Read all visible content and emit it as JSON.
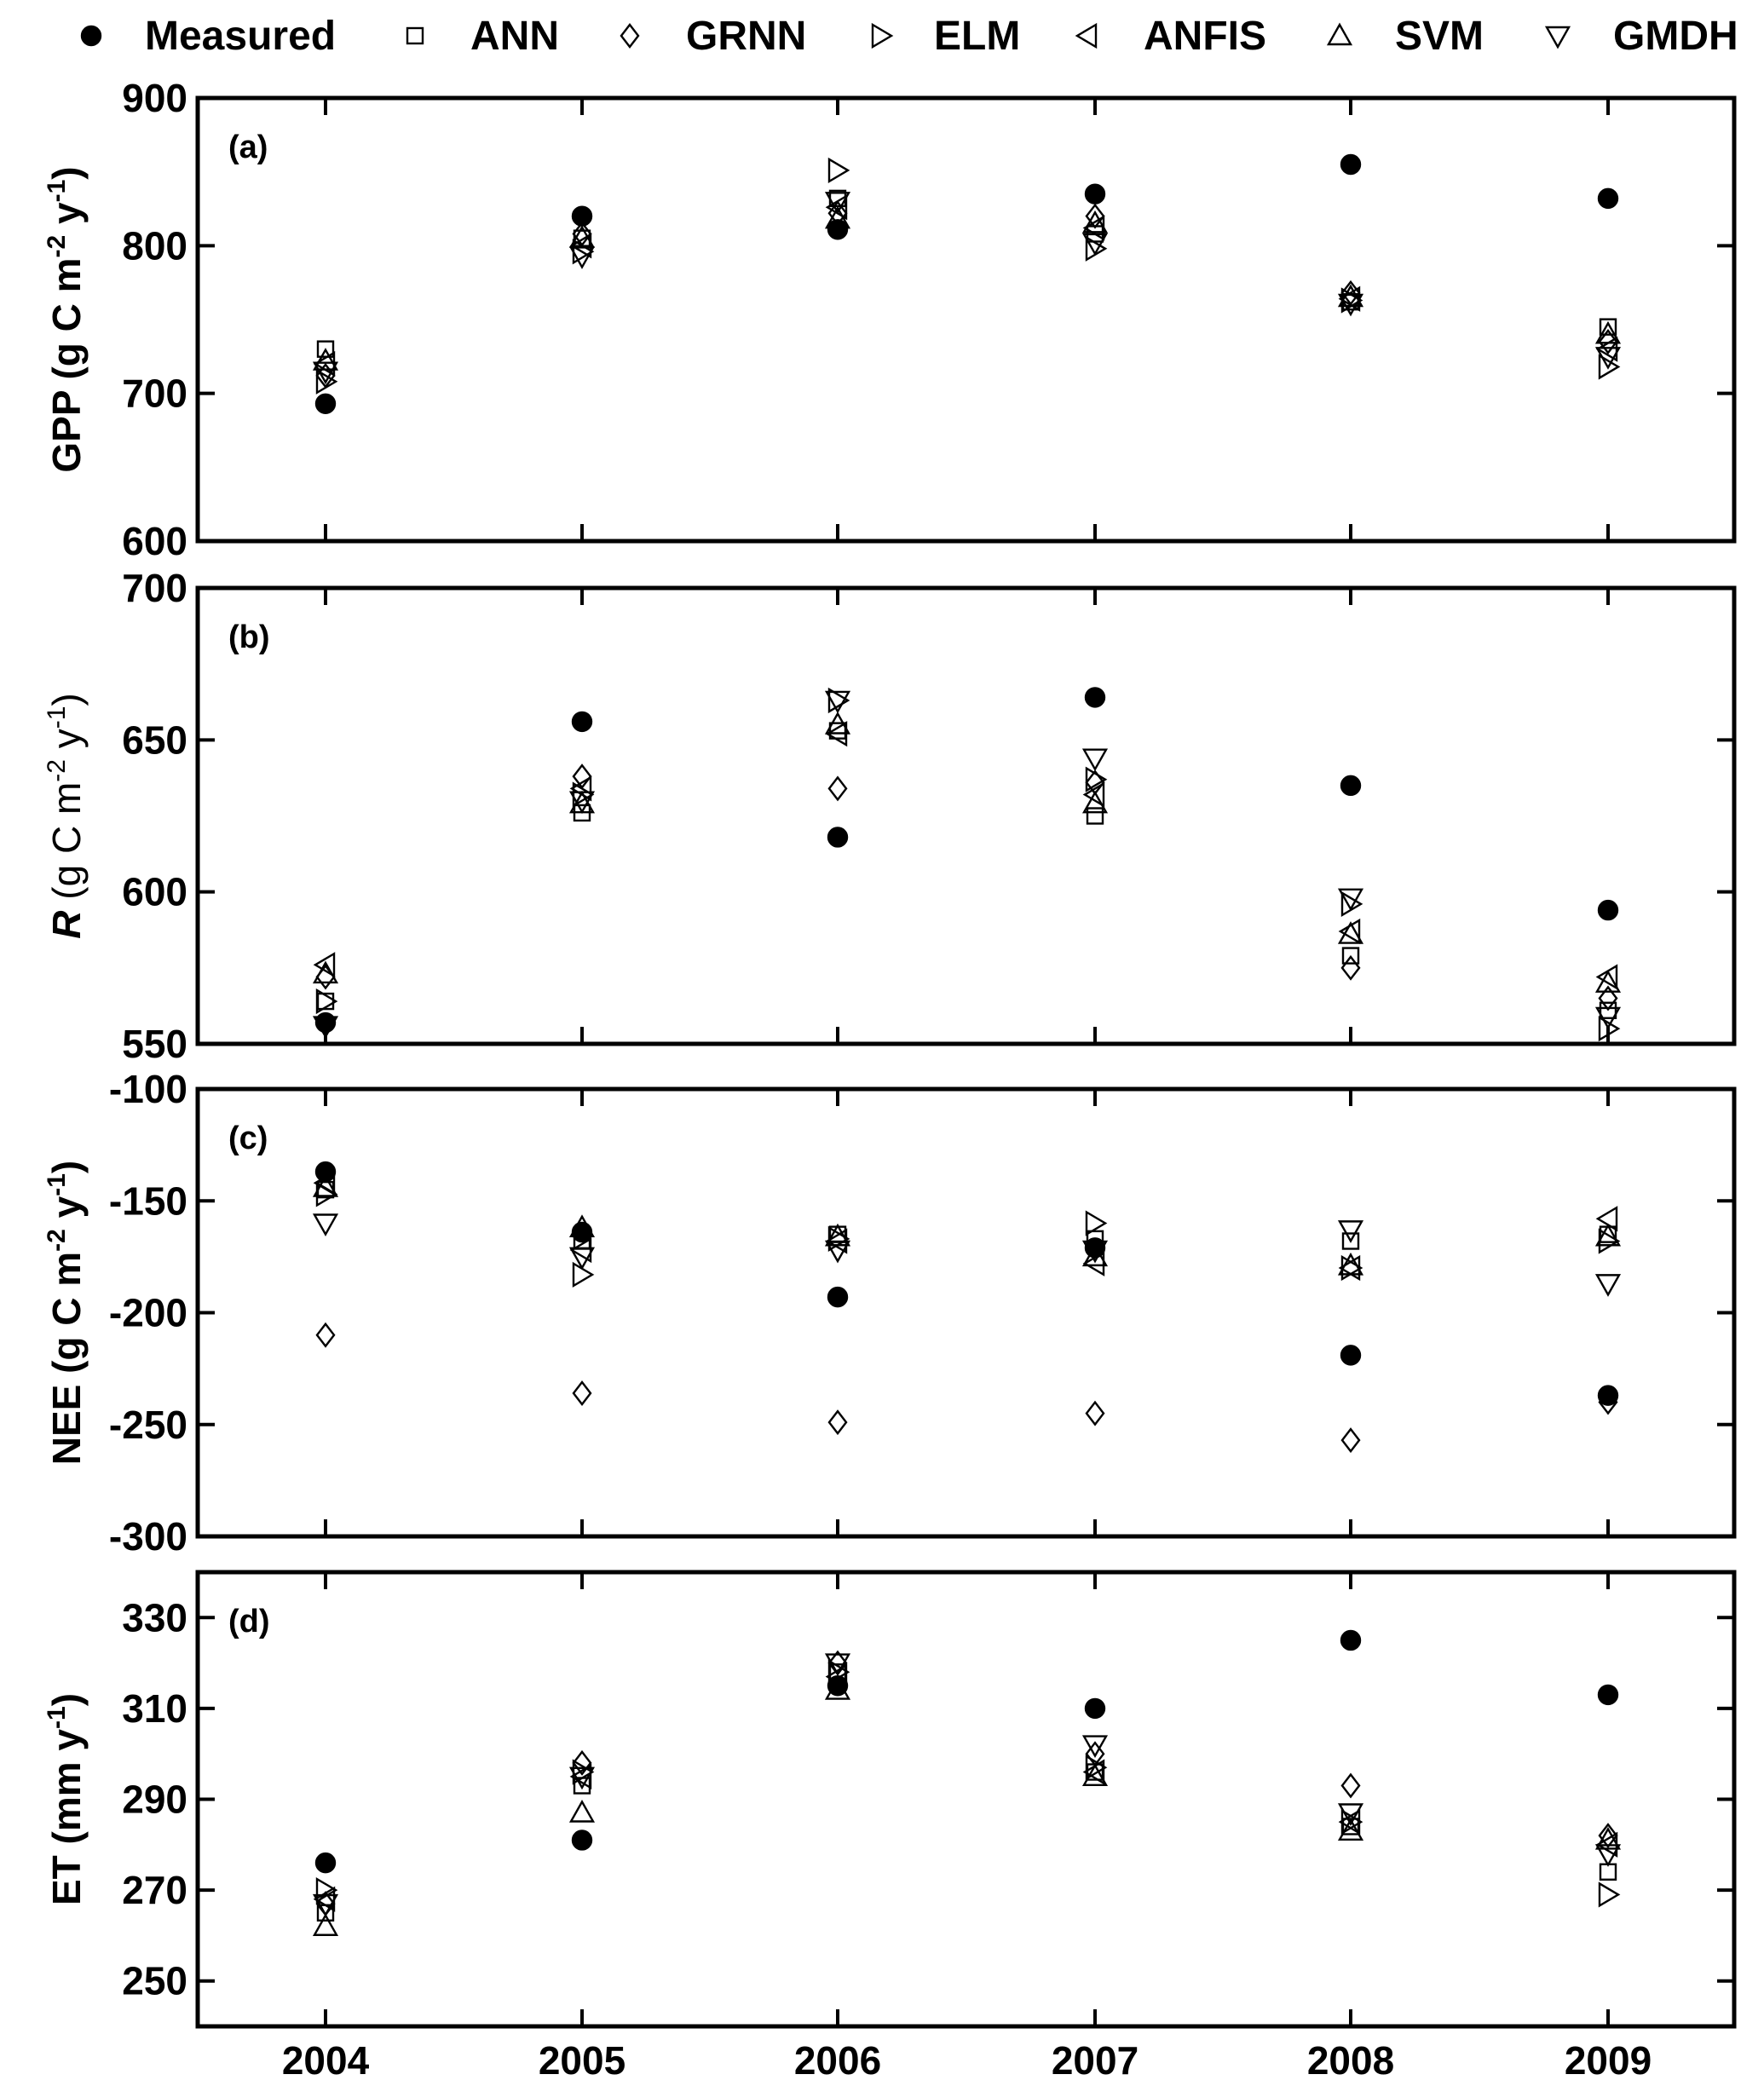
{
  "chart_data": {
    "type": "scatter",
    "legend": {
      "position": "top",
      "entries": [
        {
          "name": "Measured",
          "marker": "filled-circle"
        },
        {
          "name": "ANN",
          "marker": "square"
        },
        {
          "name": "GRNN",
          "marker": "diamond"
        },
        {
          "name": "ELM",
          "marker": "triangle-right"
        },
        {
          "name": "ANFIS",
          "marker": "triangle-left"
        },
        {
          "name": "SVM",
          "marker": "triangle-up"
        },
        {
          "name": "GMDH",
          "marker": "triangle-down"
        }
      ]
    },
    "x_categories": [
      "2004",
      "2005",
      "2006",
      "2007",
      "2008",
      "2009"
    ],
    "grid": false,
    "panels": [
      {
        "panel_label": "(a)",
        "ylabel": {
          "main": "GPP (g C m",
          "sup1": "-2",
          "mid": " y",
          "sup2": "-1",
          "end": ")"
        },
        "ylim": [
          600,
          900
        ],
        "yticks": [
          "600",
          "700",
          "800",
          "900"
        ],
        "series": [
          {
            "name": "Measured",
            "values": [
              693,
              820,
              811,
              835,
              855,
              832
            ]
          },
          {
            "name": "ANN",
            "values": [
              730,
              805,
              832,
              808,
              762,
              745
            ]
          },
          {
            "name": "GRNN",
            "values": [
              712,
              808,
              822,
              820,
              768,
              735
            ]
          },
          {
            "name": "ELM",
            "values": [
              708,
              796,
              851,
              798,
              763,
              718
            ]
          },
          {
            "name": "ANFIS",
            "values": [
              720,
              800,
              826,
              812,
              764,
              730
            ]
          },
          {
            "name": "SVM",
            "values": [
              722,
              805,
              818,
              815,
              765,
              740
            ]
          },
          {
            "name": "GMDH",
            "values": [
              715,
              793,
              830,
              802,
              761,
              725
            ]
          }
        ]
      },
      {
        "panel_label": "(b)",
        "ylabel": {
          "italic": "R",
          "main": " (g C m",
          "sup1": "-2",
          "mid": " y",
          "sup2": "-1",
          "end": ")"
        },
        "ylim": [
          550,
          700
        ],
        "yticks": [
          "550",
          "600",
          "650",
          "700"
        ],
        "series": [
          {
            "name": "Measured",
            "values": [
              557,
              656,
              618,
              664,
              635,
              594
            ]
          },
          {
            "name": "ANN",
            "values": [
              564,
              626,
              653,
              625,
              579,
              561
            ]
          },
          {
            "name": "GRNN",
            "values": [
              572,
              638,
              634,
              636,
              575,
              565
            ]
          },
          {
            "name": "ELM",
            "values": [
              564,
              632,
              663,
              637,
              596,
              555
            ]
          },
          {
            "name": "ANFIS",
            "values": [
              576,
              634,
              652,
              632,
              587,
              572
            ]
          },
          {
            "name": "SVM",
            "values": [
              573,
              629,
              655,
              629,
              586,
              570
            ]
          },
          {
            "name": "GMDH",
            "values": [
              556,
              630,
              663,
              644,
              598,
              559
            ]
          }
        ]
      },
      {
        "panel_label": "(c)",
        "ylabel": {
          "main": "NEE (g C m",
          "sup1": "-2",
          "mid": " y",
          "sup2": "-1",
          "end": ")"
        },
        "ylim": [
          -300,
          -100
        ],
        "yticks": [
          "-300",
          "-250",
          "-200",
          "-150",
          "-100"
        ],
        "series": [
          {
            "name": "Measured",
            "values": [
              -137,
              -164,
              -193,
              -171,
              -219,
              -237
            ]
          },
          {
            "name": "ANN",
            "values": [
              -145,
              -168,
              -165,
              -167,
              -168,
              -165
            ]
          },
          {
            "name": "GRNN",
            "values": [
              -210,
              -236,
              -249,
              -245,
              -257,
              -240
            ]
          },
          {
            "name": "ELM",
            "values": [
              -147,
              -183,
              -167,
              -160,
              -180,
              -168
            ]
          },
          {
            "name": "ANFIS",
            "values": [
              -142,
              -172,
              -168,
              -178,
              -180,
              -158
            ]
          },
          {
            "name": "SVM",
            "values": [
              -144,
              -162,
              -166,
              -175,
              -179,
              -166
            ]
          },
          {
            "name": "GMDH",
            "values": [
              -160,
              -175,
              -172,
              -172,
              -163,
              -187
            ]
          }
        ]
      },
      {
        "panel_label": "(d)",
        "ylabel": {
          "main": "ET (mm y",
          "sup1": "-1",
          "end": ")"
        },
        "ylim": [
          240,
          340
        ],
        "yticks": [
          "250",
          "270",
          "290",
          "310",
          "330"
        ],
        "series": [
          {
            "name": "Measured",
            "values": [
              276,
              281,
              315,
              310,
              325,
              313
            ]
          },
          {
            "name": "ANN",
            "values": [
              265,
              293,
              318,
              296,
              284,
              274
            ]
          },
          {
            "name": "GRNN",
            "values": [
              267,
              298,
              320,
              300,
              293,
              282
            ]
          },
          {
            "name": "ELM",
            "values": [
              270,
              296,
              318,
              297,
              285,
              269
            ]
          },
          {
            "name": "ANFIS",
            "values": [
              268,
              295,
              317,
              296,
              285,
              280
            ]
          },
          {
            "name": "SVM",
            "values": [
              262,
              287,
              314,
              295,
              283,
              281
            ]
          },
          {
            "name": "GMDH",
            "values": [
              267,
              295,
              320,
              302,
              287,
              278
            ]
          }
        ]
      }
    ]
  }
}
